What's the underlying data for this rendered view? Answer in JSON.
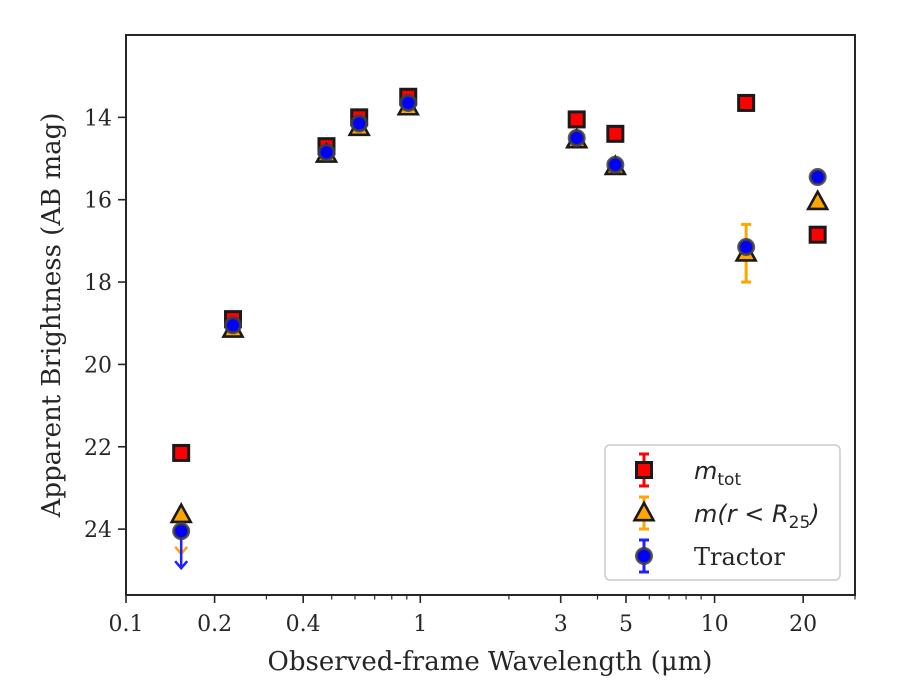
{
  "chart_data": {
    "type": "scatter",
    "title": "",
    "xlabel": "Observed-frame Wavelength (μm)",
    "ylabel": "Apparent Brightness (AB mag)",
    "xscale": "log",
    "xlim": [
      0.1,
      30
    ],
    "ylim": [
      25.6,
      12.0
    ],
    "y_inverted": true,
    "x_ticks": [
      0.1,
      0.2,
      0.4,
      1,
      3,
      5,
      10,
      20
    ],
    "x_tick_labels": [
      "0.1",
      "0.2",
      "0.4",
      "1",
      "3",
      "5",
      "10",
      "20"
    ],
    "y_ticks": [
      14,
      16,
      18,
      20,
      22,
      24
    ],
    "y_tick_labels": [
      "14",
      "16",
      "18",
      "20",
      "22",
      "24"
    ],
    "legend_position": "lower-right",
    "series": [
      {
        "name": "m_tot",
        "legend_label": {
          "main": "m",
          "sub": "tot"
        },
        "marker": "square",
        "color": "#ff0000",
        "edge_color": "#1a1a1a",
        "error_color": "#ff0000",
        "points": [
          {
            "x": 0.154,
            "y": 22.15
          },
          {
            "x": 0.231,
            "y": 18.9
          },
          {
            "x": 0.48,
            "y": 14.7
          },
          {
            "x": 0.62,
            "y": 14.0
          },
          {
            "x": 0.91,
            "y": 13.5
          },
          {
            "x": 3.4,
            "y": 14.05
          },
          {
            "x": 4.6,
            "y": 14.4
          },
          {
            "x": 12.8,
            "y": 13.65
          },
          {
            "x": 22.4,
            "y": 16.85
          }
        ]
      },
      {
        "name": "m(r<R25)",
        "legend_label": {
          "main": "m(r < R",
          "sub": "25",
          "tail": ")"
        },
        "marker": "triangle",
        "color": "#ffa500",
        "edge_color": "#1a1a1a",
        "error_color": "#ffa500",
        "points": [
          {
            "x": 0.154,
            "y": 23.65,
            "upper_limit": true,
            "limit_to": 24.6
          },
          {
            "x": 0.231,
            "y": 19.15
          },
          {
            "x": 0.48,
            "y": 14.9
          },
          {
            "x": 0.62,
            "y": 14.25
          },
          {
            "x": 0.91,
            "y": 13.75
          },
          {
            "x": 3.4,
            "y": 14.55
          },
          {
            "x": 4.6,
            "y": 15.2
          },
          {
            "x": 12.8,
            "y": 17.3,
            "yerr_low": 16.6,
            "yerr_high": 18.0
          },
          {
            "x": 22.4,
            "y": 16.05
          }
        ]
      },
      {
        "name": "Tractor",
        "legend_label": {
          "main": "Tractor"
        },
        "marker": "circle",
        "color": "#0000ff",
        "edge_color": "#404040",
        "error_color": "#1f1fff",
        "points": [
          {
            "x": 0.154,
            "y": 24.05,
            "upper_limit": true,
            "limit_to": 24.95
          },
          {
            "x": 0.231,
            "y": 19.05
          },
          {
            "x": 0.48,
            "y": 14.85
          },
          {
            "x": 0.62,
            "y": 14.15
          },
          {
            "x": 0.91,
            "y": 13.65
          },
          {
            "x": 3.4,
            "y": 14.5
          },
          {
            "x": 4.6,
            "y": 15.15
          },
          {
            "x": 12.8,
            "y": 17.15
          },
          {
            "x": 22.4,
            "y": 15.45
          }
        ]
      }
    ]
  }
}
